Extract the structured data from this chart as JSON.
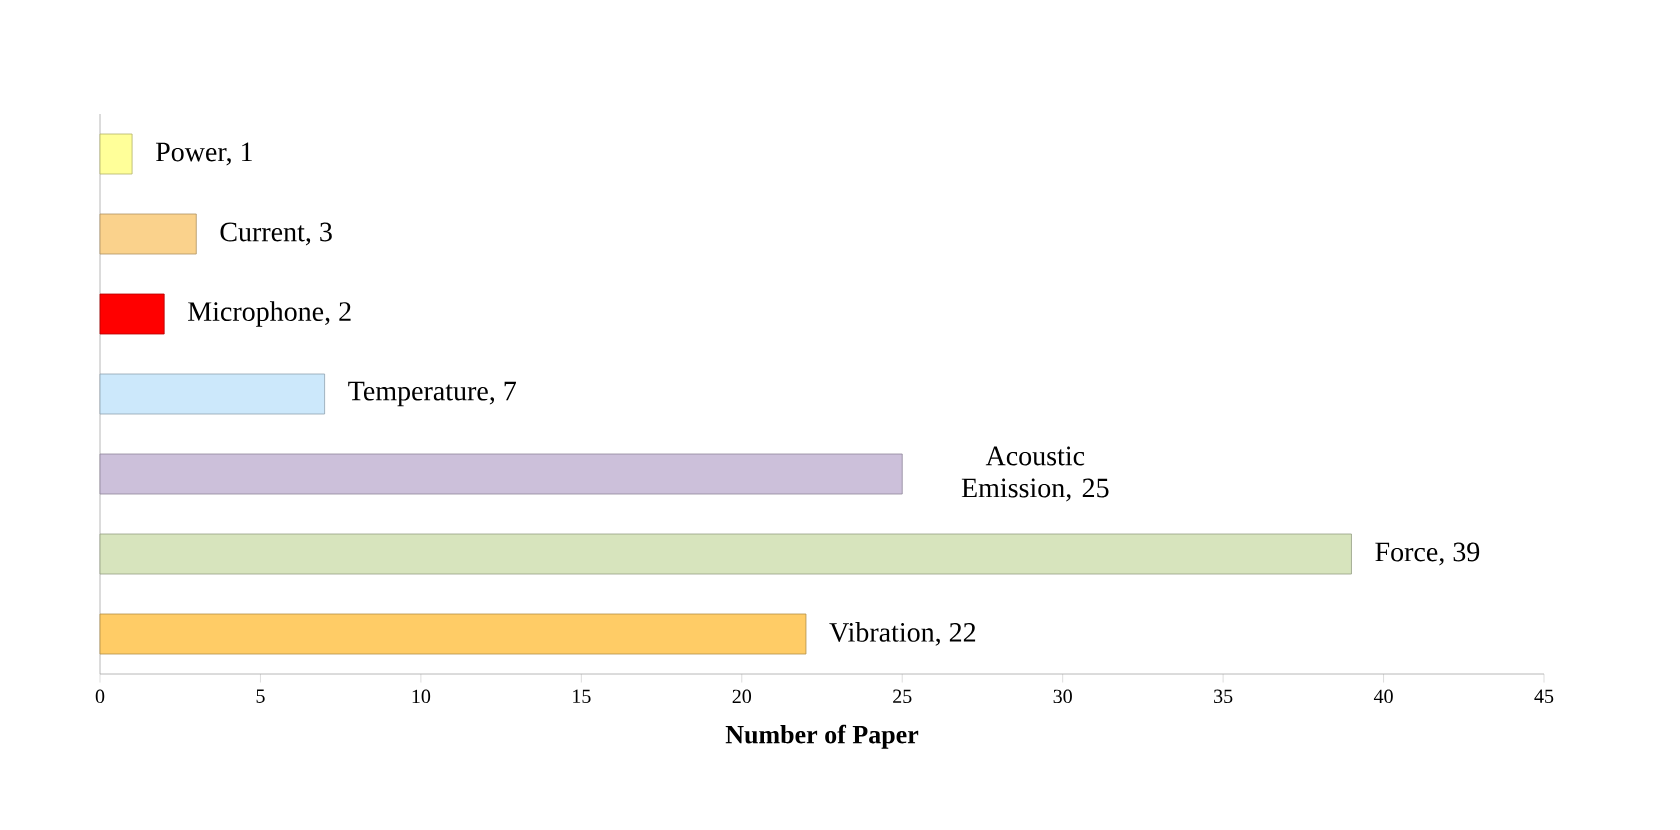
{
  "chart_data": {
    "type": "bar",
    "orientation": "horizontal",
    "xlabel": "Number of Paper",
    "categories": [
      null,
      null,
      null,
      null,
      null,
      null,
      null
    ],
    "values": [
      1,
      3,
      2,
      7,
      25,
      39,
      22
    ],
    "value_labels": [
      "Power, 1",
      "Current, 3",
      "Microphone, 2",
      "Temperature, 7",
      "Acoustic Emission, 25",
      "Force, 39",
      "Vibration, 22"
    ],
    "colors": [
      "#ffff99",
      "#fad28c",
      "#ff0000",
      "#cce8fb",
      "#ccc0da",
      "#d7e4bd",
      "#ffcc66"
    ],
    "xlim": [
      0,
      45
    ],
    "xticks": [
      0,
      5,
      10,
      15,
      20,
      25,
      30,
      35,
      40,
      45
    ],
    "grid": false,
    "tick_labels": "x"
  }
}
